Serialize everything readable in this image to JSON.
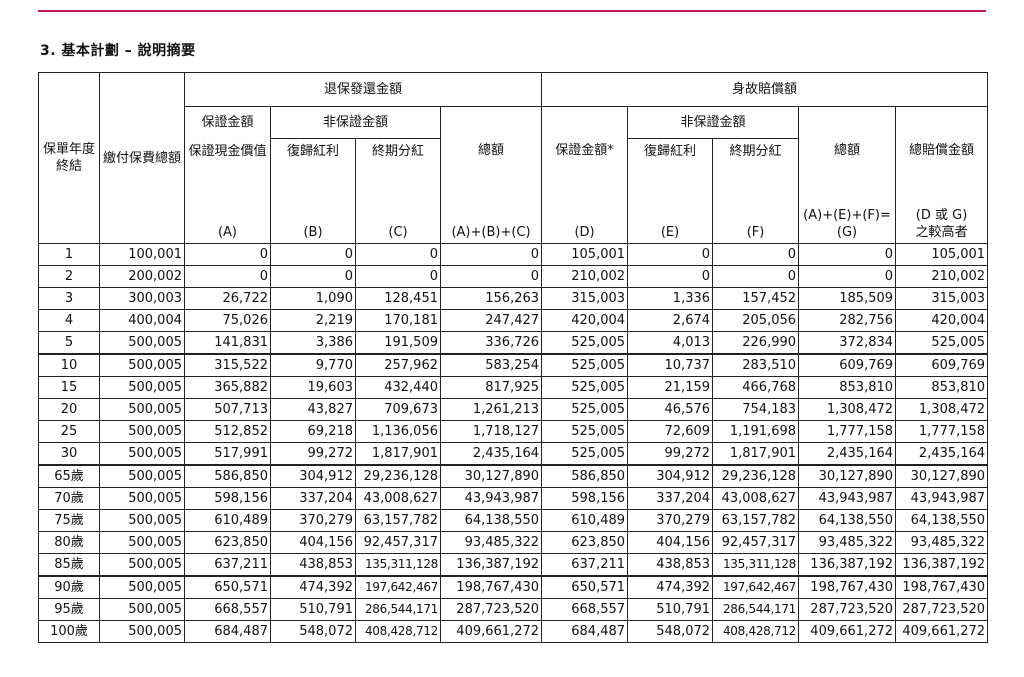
{
  "page": {
    "section_title": "3. 基本計劃 – 說明摘要"
  },
  "headers": {
    "year_end": "保單年度終結",
    "premium_total": "繳付保費總額",
    "surrender_group": "退保發還金額",
    "death_group": "身故賠償額",
    "guaranteed_amount": "保證金額",
    "non_guaranteed_amount": "非保證金額",
    "guaranteed_cash_value": "保證現金價值",
    "reversionary_bonus": "復歸紅利",
    "terminal_dividend": "終期分紅",
    "total": "總額",
    "death_guaranteed": "保證金額*",
    "total_death_benefit": "總賠償金額",
    "label_A": "(A)",
    "label_B": "(B)",
    "label_C": "(C)",
    "label_ABC": "(A)+(B)+(C)",
    "label_D": "(D)",
    "label_E": "(E)",
    "label_F": "(F)",
    "label_AEF": "(A)+(E)+(F)=",
    "label_G": "(G)",
    "label_DorG": "(D 或 G)",
    "label_higher": "之較高者"
  },
  "rows": [
    [
      "1",
      "100,001",
      "0",
      "0",
      "0",
      "0",
      "105,001",
      "0",
      "0",
      "0",
      "105,001"
    ],
    [
      "2",
      "200,002",
      "0",
      "0",
      "0",
      "0",
      "210,002",
      "0",
      "0",
      "0",
      "210,002"
    ],
    [
      "3",
      "300,003",
      "26,722",
      "1,090",
      "128,451",
      "156,263",
      "315,003",
      "1,336",
      "157,452",
      "185,509",
      "315,003"
    ],
    [
      "4",
      "400,004",
      "75,026",
      "2,219",
      "170,181",
      "247,427",
      "420,004",
      "2,674",
      "205,056",
      "282,756",
      "420,004"
    ],
    [
      "5",
      "500,005",
      "141,831",
      "3,386",
      "191,509",
      "336,726",
      "525,005",
      "4,013",
      "226,990",
      "372,834",
      "525,005"
    ],
    [
      "10",
      "500,005",
      "315,522",
      "9,770",
      "257,962",
      "583,254",
      "525,005",
      "10,737",
      "283,510",
      "609,769",
      "609,769"
    ],
    [
      "15",
      "500,005",
      "365,882",
      "19,603",
      "432,440",
      "817,925",
      "525,005",
      "21,159",
      "466,768",
      "853,810",
      "853,810"
    ],
    [
      "20",
      "500,005",
      "507,713",
      "43,827",
      "709,673",
      "1,261,213",
      "525,005",
      "46,576",
      "754,183",
      "1,308,472",
      "1,308,472"
    ],
    [
      "25",
      "500,005",
      "512,852",
      "69,218",
      "1,136,056",
      "1,718,127",
      "525,005",
      "72,609",
      "1,191,698",
      "1,777,158",
      "1,777,158"
    ],
    [
      "30",
      "500,005",
      "517,991",
      "99,272",
      "1,817,901",
      "2,435,164",
      "525,005",
      "99,272",
      "1,817,901",
      "2,435,164",
      "2,435,164"
    ],
    [
      "65歲",
      "500,005",
      "586,850",
      "304,912",
      "29,236,128",
      "30,127,890",
      "586,850",
      "304,912",
      "29,236,128",
      "30,127,890",
      "30,127,890"
    ],
    [
      "70歲",
      "500,005",
      "598,156",
      "337,204",
      "43,008,627",
      "43,943,987",
      "598,156",
      "337,204",
      "43,008,627",
      "43,943,987",
      "43,943,987"
    ],
    [
      "75歲",
      "500,005",
      "610,489",
      "370,279",
      "63,157,782",
      "64,138,550",
      "610,489",
      "370,279",
      "63,157,782",
      "64,138,550",
      "64,138,550"
    ],
    [
      "80歲",
      "500,005",
      "623,850",
      "404,156",
      "92,457,317",
      "93,485,322",
      "623,850",
      "404,156",
      "92,457,317",
      "93,485,322",
      "93,485,322"
    ],
    [
      "85歲",
      "500,005",
      "637,211",
      "438,853",
      "135,311,128",
      "136,387,192",
      "637,211",
      "438,853",
      "135,311,128",
      "136,387,192",
      "136,387,192"
    ],
    [
      "90歲",
      "500,005",
      "650,571",
      "474,392",
      "197,642,467",
      "198,767,430",
      "650,571",
      "474,392",
      "197,642,467",
      "198,767,430",
      "198,767,430"
    ],
    [
      "95歲",
      "500,005",
      "668,557",
      "510,791",
      "286,544,171",
      "287,723,520",
      "668,557",
      "510,791",
      "286,544,171",
      "287,723,520",
      "287,723,520"
    ],
    [
      "100歲",
      "500,005",
      "684,487",
      "548,072",
      "408,428,712",
      "409,661,272",
      "684,487",
      "548,072",
      "408,428,712",
      "409,661,272",
      "409,661,272"
    ]
  ],
  "group_start_rows": [
    0,
    5,
    10,
    15
  ]
}
